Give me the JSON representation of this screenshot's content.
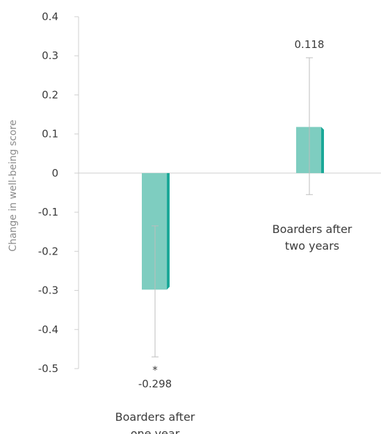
{
  "chart_data": {
    "type": "bar",
    "title": "",
    "xlabel": "",
    "ylabel": "Change in well-being score",
    "ylim": [
      -0.5,
      0.4
    ],
    "yticks": [
      0.4,
      0.3,
      0.2,
      0.1,
      0,
      -0.1,
      -0.2,
      -0.3,
      -0.4,
      -0.5
    ],
    "ytick_labels": [
      "0.4",
      "0.3",
      "0.2",
      "0.1",
      "0",
      "-0.1",
      "-0.2",
      "-0.3",
      "-0.4",
      "-0.5"
    ],
    "grid": false,
    "bar_color": "#7ecdc0",
    "bar_side_color": "#1aa898",
    "error_bar_color": "#bdbdbd",
    "categories": [
      {
        "label_lines": [
          "Boarders after",
          "one year"
        ],
        "value": -0.298,
        "value_label": "-0.298",
        "significance": "*",
        "ci_low": -0.47,
        "ci_high": -0.135
      },
      {
        "label_lines": [
          "Boarders after",
          "two years"
        ],
        "value": 0.118,
        "value_label": "0.118",
        "significance": "",
        "ci_low": -0.055,
        "ci_high": 0.295
      }
    ]
  }
}
